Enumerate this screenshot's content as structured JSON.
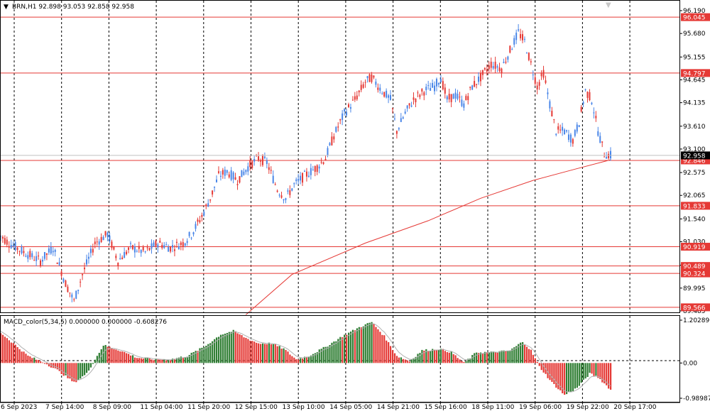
{
  "header": {
    "arrow": "▼",
    "text": "BRN,H1  92.898 93.053 92.858 92.958"
  },
  "macd_label": "MACD_color(5,34,5) 0.000000 0.000000 -0.608276",
  "colors": {
    "bull": "#4a86e8",
    "bear": "#e53935",
    "level": "#e53935",
    "ma": "#e53935",
    "macd_up": "#2e7d32",
    "macd_down": "#e53935",
    "signal": "#b0b0b0",
    "grid": "#000000",
    "current_price": "#000000"
  },
  "chart_data": {
    "type": "candlestick",
    "price_axis": {
      "range": [
        89.485,
        96.19
      ],
      "ticks": [
        "96.190",
        "95.680",
        "95.155",
        "94.645",
        "94.135",
        "93.610",
        "93.100",
        "92.575",
        "92.065",
        "91.540",
        "91.030",
        "90.505",
        "89.995",
        "89.485"
      ]
    },
    "current_price": "92.958",
    "levels": [
      {
        "value": 96.045,
        "label": "96.045"
      },
      {
        "value": 94.797,
        "label": "94.797"
      },
      {
        "value": 92.846,
        "label": "92.846"
      },
      {
        "value": 91.833,
        "label": "91.833"
      },
      {
        "value": 90.919,
        "label": "90.919"
      },
      {
        "value": 90.489,
        "label": "90.489"
      },
      {
        "value": 90.324,
        "label": "90.324"
      },
      {
        "value": 89.566,
        "label": "89.566"
      }
    ],
    "time_labels": [
      "6 Sep 2023",
      "7 Sep 14:00",
      "8 Sep 09:00",
      "11 Sep 04:00",
      "11 Sep 20:00",
      "12 Sep 15:00",
      "13 Sep 10:00",
      "14 Sep 05:00",
      "14 Sep 21:00",
      "15 Sep 16:00",
      "18 Sep 11:00",
      "19 Sep 06:00",
      "19 Sep 22:00",
      "20 Sep 17:00"
    ],
    "macd_axis": {
      "range": [
        -0.98987,
        1.202896
      ],
      "ticks": [
        "1.202896",
        "0.00",
        "-0.98987"
      ]
    },
    "anchors": [
      [
        0,
        91.2
      ],
      [
        5,
        91.0
      ],
      [
        12,
        90.8
      ],
      [
        20,
        90.6
      ],
      [
        26,
        90.9
      ],
      [
        32,
        90.1
      ],
      [
        36,
        89.7
      ],
      [
        40,
        90.3
      ],
      [
        46,
        91.0
      ],
      [
        52,
        91.2
      ],
      [
        57,
        90.6
      ],
      [
        63,
        90.9
      ],
      [
        70,
        90.8
      ],
      [
        76,
        91.0
      ],
      [
        82,
        90.9
      ],
      [
        88,
        91.0
      ],
      [
        92,
        91.2
      ],
      [
        97,
        91.6
      ],
      [
        101,
        92.0
      ],
      [
        105,
        92.5
      ],
      [
        109,
        92.6
      ],
      [
        114,
        92.4
      ],
      [
        119,
        92.7
      ],
      [
        124,
        92.9
      ],
      [
        128,
        92.8
      ],
      [
        133,
        92.2
      ],
      [
        137,
        92.0
      ],
      [
        141,
        92.3
      ],
      [
        146,
        92.5
      ],
      [
        152,
        92.7
      ],
      [
        156,
        92.9
      ],
      [
        160,
        93.4
      ],
      [
        165,
        93.9
      ],
      [
        170,
        94.2
      ],
      [
        175,
        94.6
      ],
      [
        178,
        94.7
      ],
      [
        183,
        94.4
      ],
      [
        187,
        94.2
      ],
      [
        190,
        93.5
      ],
      [
        194,
        93.9
      ],
      [
        198,
        94.2
      ],
      [
        203,
        94.4
      ],
      [
        208,
        94.5
      ],
      [
        211,
        94.7
      ],
      [
        214,
        94.2
      ],
      [
        218,
        94.3
      ],
      [
        222,
        94.1
      ],
      [
        226,
        94.5
      ],
      [
        230,
        94.7
      ],
      [
        235,
        95.0
      ],
      [
        240,
        94.9
      ],
      [
        244,
        95.3
      ],
      [
        248,
        95.7
      ],
      [
        251,
        95.5
      ],
      [
        254,
        95.0
      ],
      [
        257,
        94.5
      ],
      [
        260,
        94.8
      ],
      [
        263,
        94.1
      ],
      [
        266,
        93.5
      ],
      [
        270,
        93.5
      ],
      [
        274,
        93.3
      ],
      [
        277,
        93.7
      ],
      [
        280,
        94.4
      ],
      [
        283,
        94.2
      ],
      [
        286,
        93.5
      ],
      [
        289,
        93.0
      ],
      [
        292,
        92.96
      ]
    ],
    "ma_points": [
      [
        118,
        89.4
      ],
      [
        140,
        90.3
      ],
      [
        175,
        91.0
      ],
      [
        205,
        91.5
      ],
      [
        230,
        92.0
      ],
      [
        255,
        92.4
      ],
      [
        275,
        92.65
      ],
      [
        292,
        92.86
      ]
    ],
    "macd_anchors": [
      [
        0,
        0.9
      ],
      [
        8,
        0.5
      ],
      [
        14,
        0.2
      ],
      [
        22,
        0.0
      ],
      [
        28,
        -0.2
      ],
      [
        36,
        -0.55
      ],
      [
        42,
        -0.3
      ],
      [
        50,
        0.5
      ],
      [
        58,
        0.35
      ],
      [
        66,
        0.15
      ],
      [
        74,
        0.1
      ],
      [
        82,
        0.1
      ],
      [
        90,
        0.2
      ],
      [
        98,
        0.45
      ],
      [
        106,
        0.8
      ],
      [
        112,
        0.9
      ],
      [
        118,
        0.7
      ],
      [
        124,
        0.55
      ],
      [
        130,
        0.55
      ],
      [
        136,
        0.4
      ],
      [
        142,
        0.1
      ],
      [
        148,
        0.2
      ],
      [
        156,
        0.45
      ],
      [
        164,
        0.75
      ],
      [
        172,
        1.0
      ],
      [
        178,
        1.15
      ],
      [
        184,
        0.75
      ],
      [
        190,
        0.2
      ],
      [
        196,
        0.05
      ],
      [
        202,
        0.35
      ],
      [
        210,
        0.4
      ],
      [
        216,
        0.3
      ],
      [
        222,
        0.0
      ],
      [
        228,
        0.3
      ],
      [
        236,
        0.3
      ],
      [
        244,
        0.35
      ],
      [
        250,
        0.6
      ],
      [
        254,
        0.35
      ],
      [
        258,
        -0.1
      ],
      [
        264,
        -0.55
      ],
      [
        270,
        -0.9
      ],
      [
        276,
        -0.7
      ],
      [
        282,
        -0.3
      ],
      [
        286,
        -0.4
      ],
      [
        292,
        -0.75
      ]
    ]
  }
}
